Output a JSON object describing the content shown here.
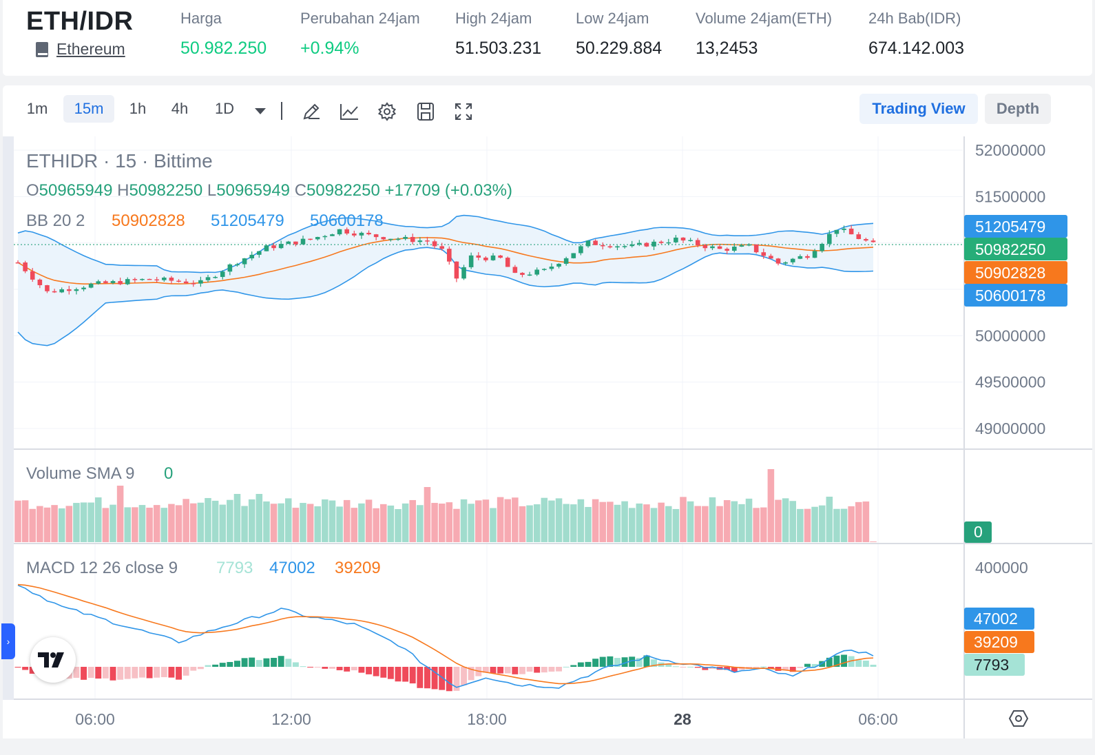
{
  "header": {
    "pair": "ETH/IDR",
    "asset_name": "Ethereum",
    "asset_icon": "book-icon",
    "stats": [
      {
        "key": "Harga",
        "value": "50.982.250",
        "color": "green"
      },
      {
        "key": "Perubahan 24jam",
        "value": "+0.94%",
        "color": "green"
      },
      {
        "key": "High 24jam",
        "value": "51.503.231",
        "color": "default"
      },
      {
        "key": "Low 24jam",
        "value": "50.229.884",
        "color": "default"
      },
      {
        "key": "Volume 24jam(ETH)",
        "value": "13,2453",
        "color": "default"
      },
      {
        "key": "24h Bab(IDR)",
        "value": "674.142.003",
        "color": "default"
      }
    ]
  },
  "toolbar": {
    "timeframes": [
      "1m",
      "15m",
      "1h",
      "4h",
      "1D"
    ],
    "active_timeframe": "15m",
    "dropdown_icon": "caret-down-icon",
    "tools": [
      "pencil-icon",
      "chart-line-icon",
      "gear-icon",
      "save-icon",
      "fullscreen-icon"
    ],
    "views": {
      "trading_view": "Trading View",
      "depth": "Depth"
    },
    "active_view": "Trading View"
  },
  "chart": {
    "symbol_line": "ETHIDR · 15 · Bittime",
    "ohlc": {
      "O": "50965949",
      "H": "50982250",
      "L": "50965949",
      "C": "50982250",
      "change": "+17709 (+0.03%)"
    },
    "bb": {
      "label": "BB 20 2",
      "basis": "50902828",
      "upper": "51205479",
      "lower": "50600178"
    },
    "volume": {
      "label": "Volume SMA 9",
      "value": "0"
    },
    "macd": {
      "label": "MACD 12 26 close 9",
      "hist": "7793",
      "macd": "47002",
      "signal": "39209"
    },
    "price_ticks": [
      "52000000",
      "51500000",
      "50000000",
      "49500000",
      "49000000"
    ],
    "macd_ticks": [
      "400000"
    ],
    "time_ticks": [
      "06:00",
      "12:00",
      "18:00",
      "28",
      "06:00"
    ],
    "price_badges": [
      {
        "label": "51205479",
        "color": "#2f95e8"
      },
      {
        "label": "50982250",
        "color": "#26ad78"
      },
      {
        "label": "50902828",
        "color": "#f7781d"
      },
      {
        "label": "50600178",
        "color": "#2f95e8"
      }
    ],
    "volume_badge": "0",
    "macd_badges": [
      {
        "label": "47002",
        "color": "#2f95e8"
      },
      {
        "label": "39209",
        "color": "#f7781d"
      },
      {
        "label": "7793",
        "color": "#a5e3d6"
      }
    ],
    "colors": {
      "up": "#26a17b",
      "down": "#ef4a5a",
      "basis": "#f7781d",
      "band": "#2f95e8",
      "macd": "#2f95e8",
      "signal": "#f7781d"
    },
    "logo_icon": "tradingview-logo-icon",
    "settings_icon": "hexagon-settings-icon"
  }
}
